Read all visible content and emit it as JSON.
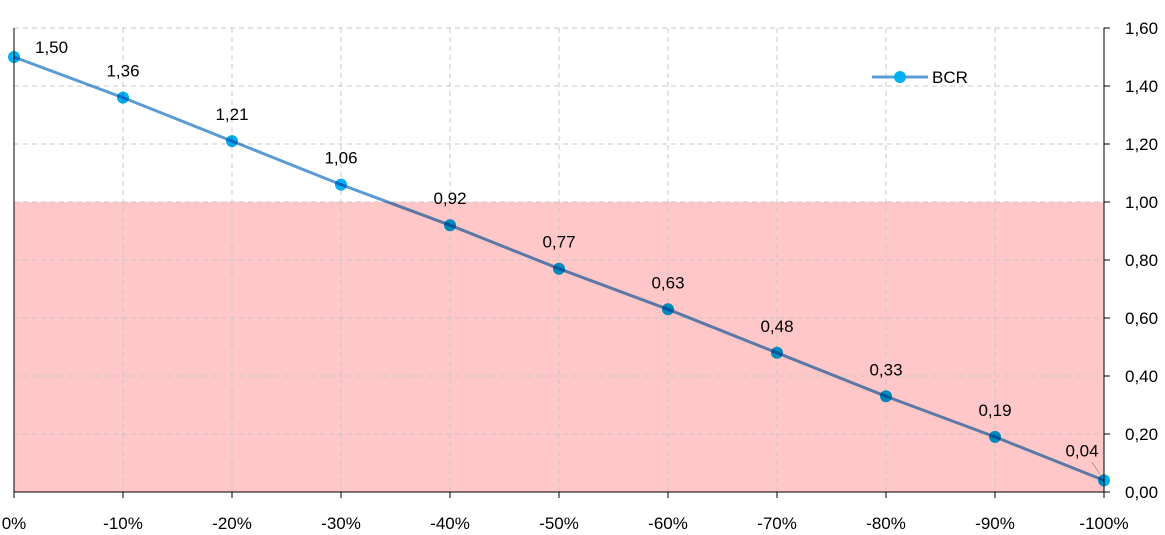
{
  "chart_data": {
    "type": "line",
    "categories": [
      "0%",
      "-10%",
      "-20%",
      "-30%",
      "-40%",
      "-50%",
      "-60%",
      "-70%",
      "-80%",
      "-90%",
      "-100%"
    ],
    "series": [
      {
        "name": "BCR",
        "values": [
          1.5,
          1.36,
          1.21,
          1.06,
          0.92,
          0.77,
          0.63,
          0.48,
          0.33,
          0.19,
          0.04
        ],
        "labels": [
          "1,50",
          "1,36",
          "1,21",
          "1,06",
          "0,92",
          "0,77",
          "0,63",
          "0,48",
          "0,33",
          "0,19",
          "0,04"
        ],
        "color": "#5b9bd5",
        "marker_color": "#00b0f0"
      }
    ],
    "y_ticks": [
      "0,00",
      "0,20",
      "0,40",
      "0,60",
      "0,80",
      "1,00",
      "1,20",
      "1,40",
      "1,60"
    ],
    "ylim": [
      0,
      1.6
    ],
    "y_axis_side": "right",
    "grid": true,
    "legend_position": "top-right",
    "shaded_band": {
      "from": 0,
      "to": 1.0,
      "color": "#ffc7c7"
    },
    "title": "",
    "xlabel": "",
    "ylabel": ""
  }
}
